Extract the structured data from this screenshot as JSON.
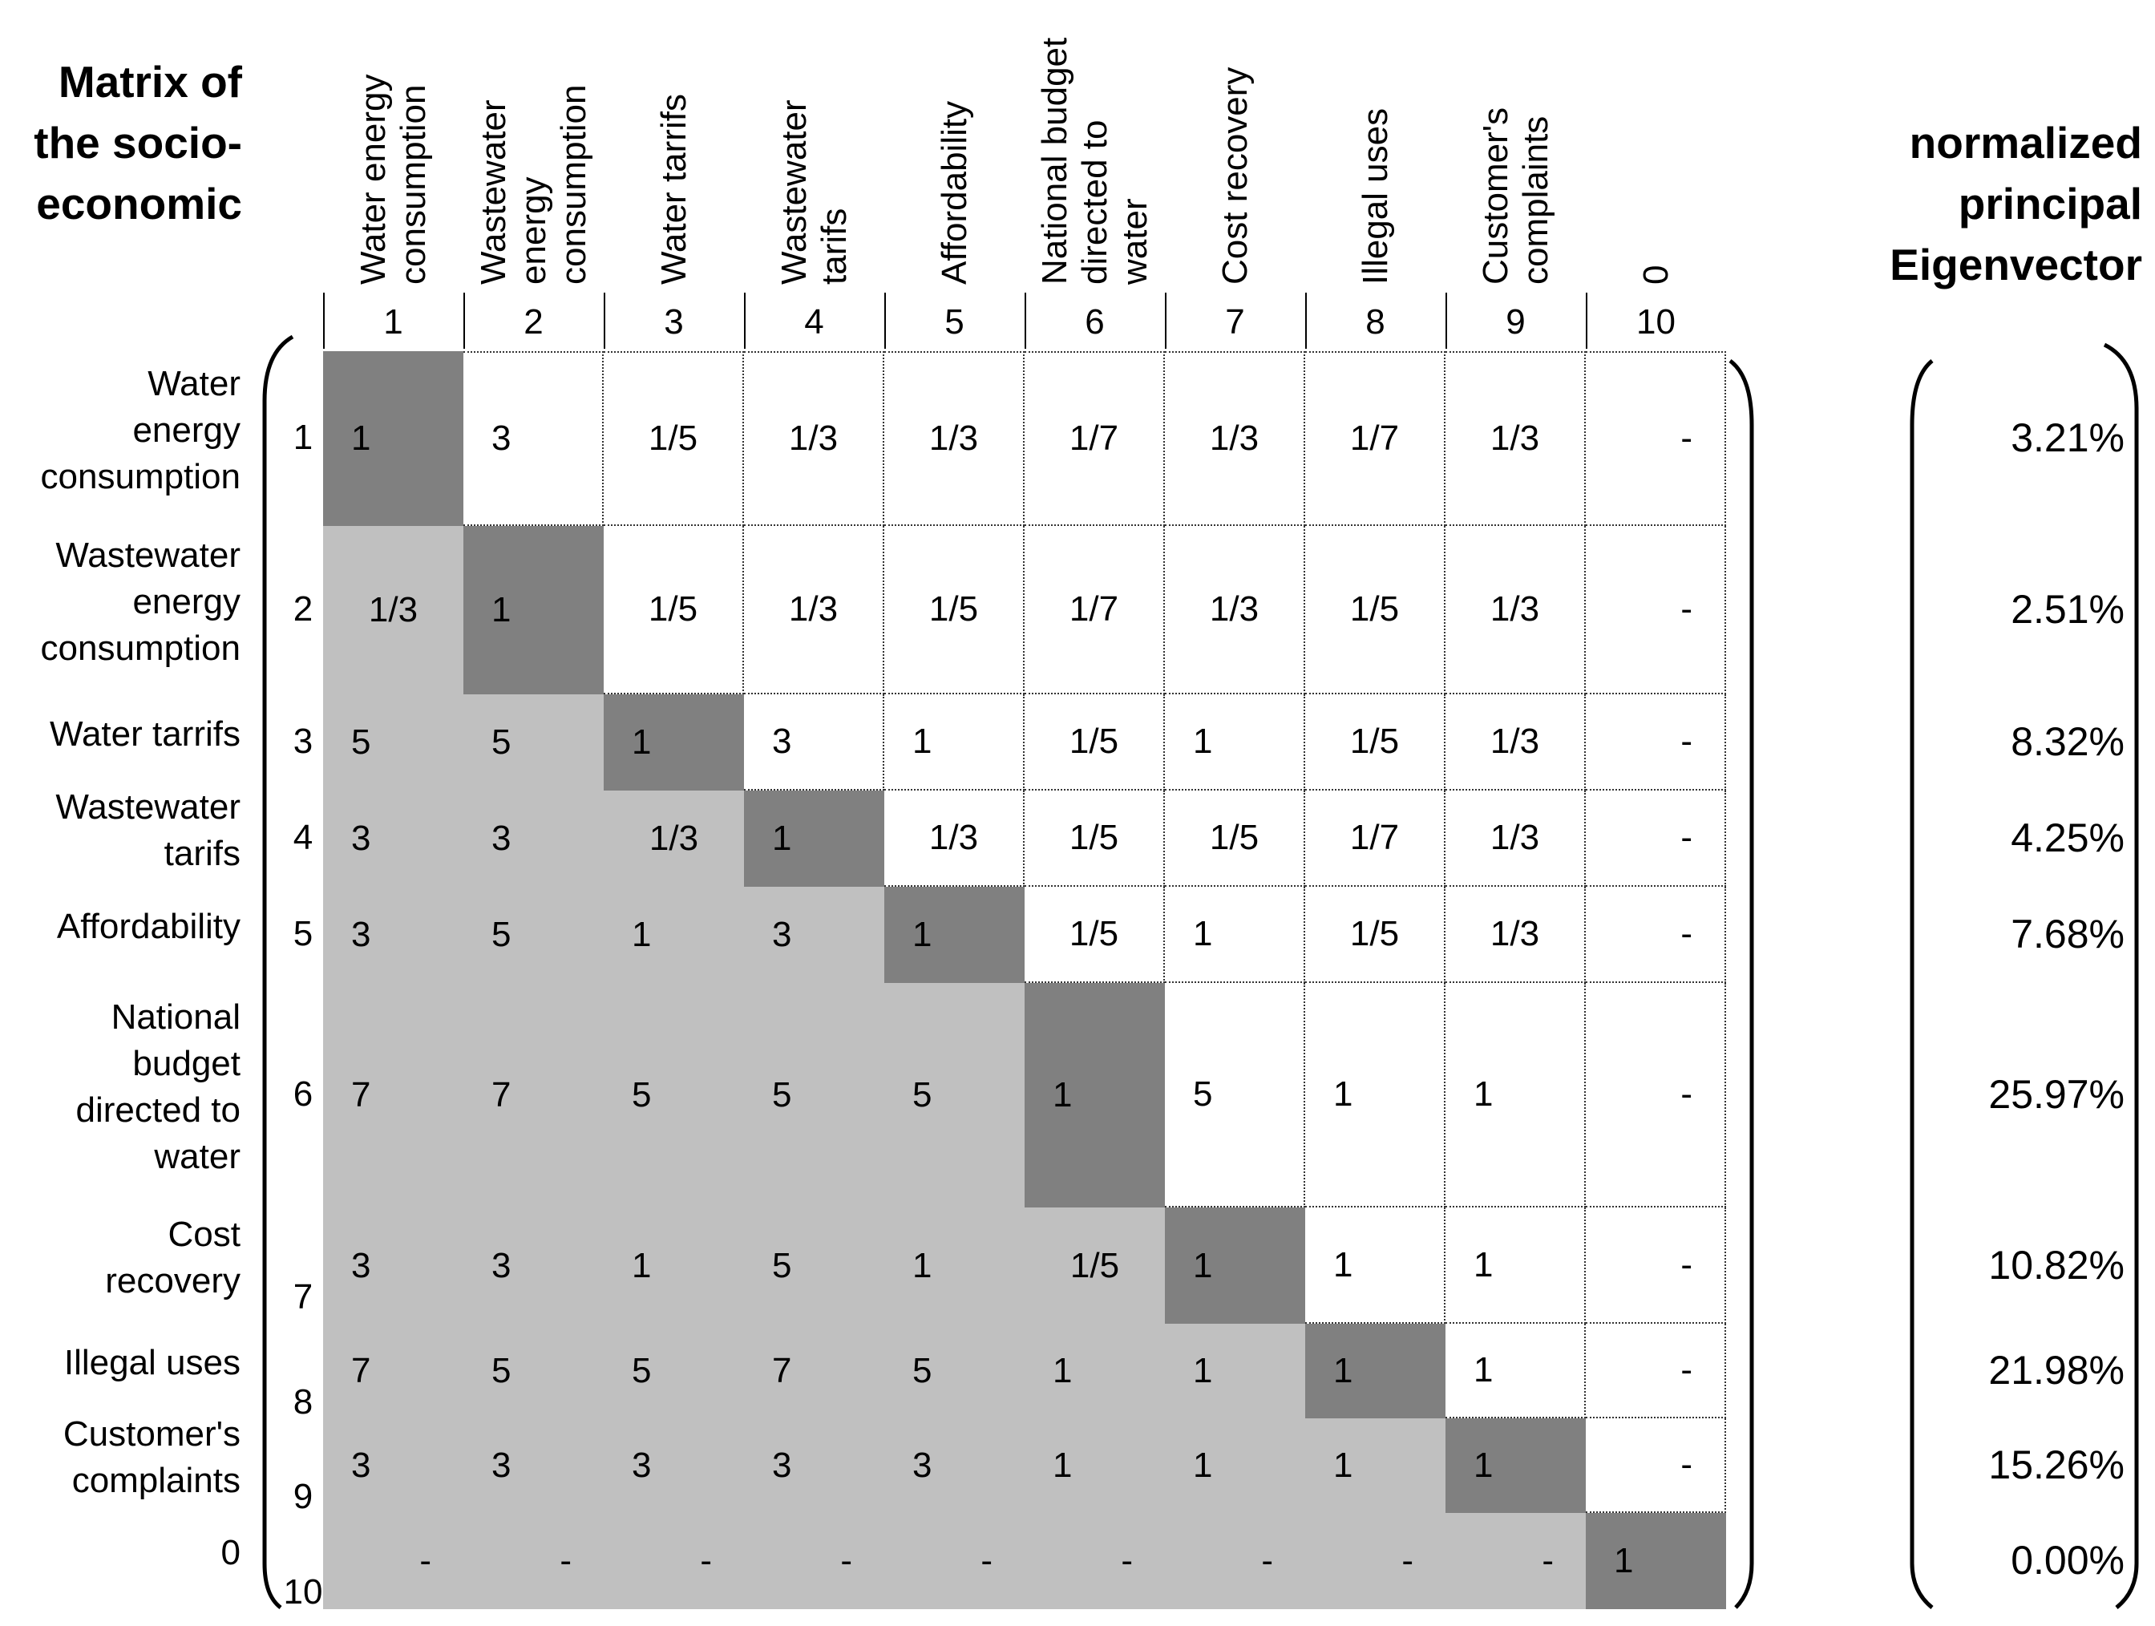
{
  "title_lines": [
    "Matrix of",
    "the socio-",
    "economic"
  ],
  "eigen_title_lines": [
    "normalized",
    "principal",
    "Eigenvector"
  ],
  "columns": [
    {
      "num": "1",
      "label_lines": [
        "Water energy",
        "consumption"
      ]
    },
    {
      "num": "2",
      "label_lines": [
        "Wastewater",
        "energy",
        "consumption"
      ]
    },
    {
      "num": "3",
      "label_lines": [
        "Water tarrifs"
      ]
    },
    {
      "num": "4",
      "label_lines": [
        "Wastewater",
        "tarifs"
      ]
    },
    {
      "num": "5",
      "label_lines": [
        "Affordability"
      ]
    },
    {
      "num": "6",
      "label_lines": [
        "National budget",
        "directed to",
        "water"
      ]
    },
    {
      "num": "7",
      "label_lines": [
        "Cost recovery"
      ]
    },
    {
      "num": "8",
      "label_lines": [
        "Illegal uses"
      ]
    },
    {
      "num": "9",
      "label_lines": [
        "Customer's",
        "complaints"
      ]
    },
    {
      "num": "10",
      "label_lines": [
        "0"
      ]
    }
  ],
  "rows": [
    {
      "num": "1",
      "label_lines": [
        "Water",
        "energy",
        "consumption"
      ],
      "values": [
        "1",
        "3",
        "1/5",
        "1/3",
        "1/3",
        "1/7",
        "1/3",
        "1/7",
        "1/3",
        "-"
      ],
      "eigen": "3.21%"
    },
    {
      "num": "2",
      "label_lines": [
        "Wastewater",
        "energy",
        "consumption"
      ],
      "values": [
        "1/3",
        "1",
        "1/5",
        "1/3",
        "1/5",
        "1/7",
        "1/3",
        "1/5",
        "1/3",
        "-"
      ],
      "eigen": "2.51%"
    },
    {
      "num": "3",
      "label_lines": [
        "Water tarrifs"
      ],
      "values": [
        "5",
        "5",
        "1",
        "3",
        "1",
        "1/5",
        "1",
        "1/5",
        "1/3",
        "-"
      ],
      "eigen": "8.32%"
    },
    {
      "num": "4",
      "label_lines": [
        "Wastewater",
        "tarifs"
      ],
      "values": [
        "3",
        "3",
        "1/3",
        "1",
        "1/3",
        "1/5",
        "1/5",
        "1/7",
        "1/3",
        "-"
      ],
      "eigen": "4.25%"
    },
    {
      "num": "5",
      "label_lines": [
        "Affordability"
      ],
      "values": [
        "3",
        "5",
        "1",
        "3",
        "1",
        "1/5",
        "1",
        "1/5",
        "1/3",
        "-"
      ],
      "eigen": "7.68%"
    },
    {
      "num": "6",
      "label_lines": [
        "National",
        "budget",
        "directed to",
        "water"
      ],
      "values": [
        "7",
        "7",
        "5",
        "5",
        "5",
        "1",
        "5",
        "1",
        "1",
        "-"
      ],
      "eigen": "25.97%"
    },
    {
      "num": "7",
      "label_lines": [
        "Cost",
        "recovery"
      ],
      "values": [
        "3",
        "3",
        "1",
        "5",
        "1",
        "1/5",
        "1",
        "1",
        "1",
        "-"
      ],
      "eigen": "10.82%"
    },
    {
      "num": "8",
      "label_lines": [
        "Illegal uses"
      ],
      "values": [
        "7",
        "5",
        "5",
        "7",
        "5",
        "1",
        "1",
        "1",
        "1",
        "-"
      ],
      "eigen": "21.98%"
    },
    {
      "num": "9",
      "label_lines": [
        "Customer's",
        "complaints"
      ],
      "values": [
        "3",
        "3",
        "3",
        "3",
        "3",
        "1",
        "1",
        "1",
        "1",
        "-"
      ],
      "eigen": "15.26%"
    },
    {
      "num": "10",
      "label_lines": [
        "0"
      ],
      "values": [
        "-",
        "-",
        "-",
        "-",
        "-",
        "-",
        "-",
        "-",
        "-",
        "1"
      ],
      "eigen": "0.00%"
    }
  ],
  "colors": {
    "diagonal": "#808080",
    "lower": "#c0c0c0",
    "upper": "#ffffff"
  }
}
